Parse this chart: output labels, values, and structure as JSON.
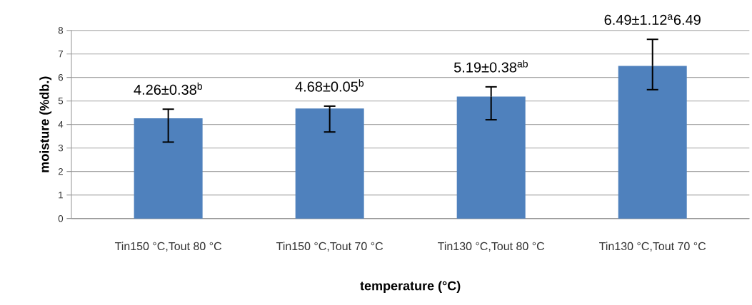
{
  "chart_data": {
    "type": "bar",
    "xlabel": "temperature (°C)",
    "ylabel": "moisture (%db.)",
    "categories": [
      "Tin150 °C,Tout 80 °C",
      "Tin150 °C,Tout 70 °C",
      "Tin130 °C,Tout 80 °C",
      "Tin130 °C,Tout 70 °C"
    ],
    "values": [
      4.26,
      4.68,
      5.19,
      6.49
    ],
    "errors": [
      [
        3.25,
        4.65
      ],
      [
        3.68,
        4.78
      ],
      [
        4.2,
        5.6
      ],
      [
        5.48,
        7.62
      ]
    ],
    "color": "#4f81bd",
    "ylim": [
      0,
      8
    ],
    "yticks": [
      0,
      1,
      2,
      3,
      4,
      5,
      6,
      7,
      8
    ],
    "grid": "y",
    "annotations": [
      "4.26±0.38$^{b}$",
      "4.68±0.05$^{b}$",
      "5.19±0.38$^{ab}$",
      "6.49±1.12$^{a}$6.49"
    ]
  }
}
